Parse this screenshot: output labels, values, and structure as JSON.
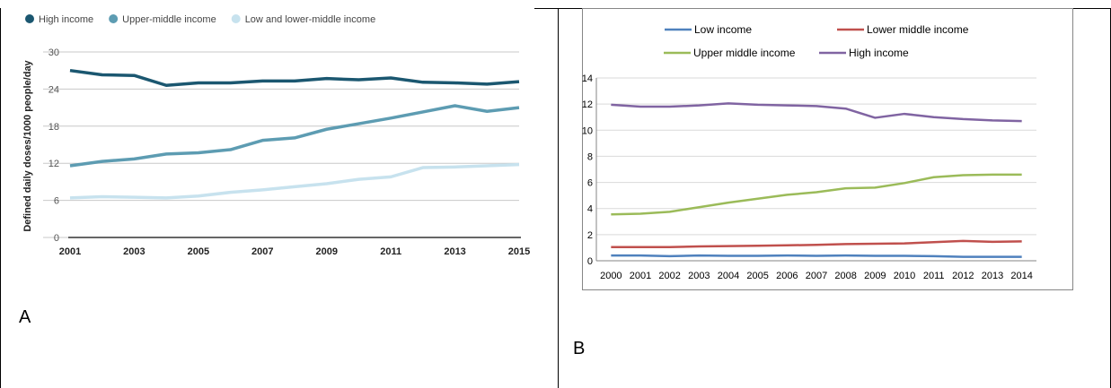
{
  "panels": {
    "a": {
      "letter": "A"
    },
    "b": {
      "letter": "B"
    }
  },
  "chart_data": [
    {
      "type": "line",
      "title": "",
      "xlabel": "",
      "ylabel": "Defined daily doses/1000 people/day",
      "x": [
        2001,
        2002,
        2003,
        2004,
        2005,
        2006,
        2007,
        2008,
        2009,
        2010,
        2011,
        2012,
        2013,
        2014,
        2015
      ],
      "xticks": [
        "2001",
        "2003",
        "2005",
        "2007",
        "2009",
        "2011",
        "2013",
        "2015"
      ],
      "ylim": [
        0,
        30
      ],
      "yticks": [
        "0",
        "6",
        "12",
        "18",
        "24",
        "30"
      ],
      "grid": true,
      "legend_position": "top-left",
      "colors": [
        "#1b5770",
        "#5d9cb2",
        "#c7e2ee"
      ],
      "series": [
        {
          "name": "High income",
          "values": [
            27.0,
            26.3,
            26.2,
            24.6,
            25.0,
            25.0,
            25.3,
            25.3,
            25.7,
            25.5,
            25.8,
            25.1,
            25.0,
            24.8,
            25.2
          ]
        },
        {
          "name": "Upper-middle income",
          "values": [
            11.6,
            12.3,
            12.7,
            13.5,
            13.7,
            14.2,
            15.7,
            16.1,
            17.5,
            18.4,
            19.3,
            20.3,
            21.3,
            20.4,
            21.0
          ]
        },
        {
          "name": "Low and lower-middle income",
          "values": [
            6.4,
            6.6,
            6.5,
            6.4,
            6.7,
            7.3,
            7.7,
            8.2,
            8.7,
            9.4,
            9.8,
            11.3,
            11.4,
            11.6,
            11.8
          ]
        }
      ]
    },
    {
      "type": "line",
      "title": "",
      "xlabel": "",
      "ylabel": "",
      "x": [
        "2000",
        "2001",
        "2002",
        "2003",
        "2004",
        "2005",
        "2006",
        "2007",
        "2008",
        "2009",
        "2010",
        "2011",
        "2012",
        "2013",
        "2014"
      ],
      "ylim": [
        0,
        14
      ],
      "yticks": [
        "0",
        "2",
        "4",
        "6",
        "8",
        "10",
        "12",
        "14"
      ],
      "grid": true,
      "legend_position": "top",
      "colors": [
        "#4f81bd",
        "#c0504d",
        "#9bbb59",
        "#8064a2"
      ],
      "series": [
        {
          "name": "Low income",
          "values": [
            0.4,
            0.4,
            0.35,
            0.4,
            0.38,
            0.38,
            0.4,
            0.38,
            0.4,
            0.38,
            0.38,
            0.35,
            0.3,
            0.3,
            0.3
          ]
        },
        {
          "name": "Lower middle income",
          "values": [
            1.05,
            1.05,
            1.05,
            1.1,
            1.12,
            1.15,
            1.18,
            1.22,
            1.28,
            1.3,
            1.33,
            1.42,
            1.52,
            1.45,
            1.48
          ]
        },
        {
          "name": "Upper middle income",
          "values": [
            3.55,
            3.6,
            3.75,
            4.1,
            4.45,
            4.75,
            5.05,
            5.25,
            5.55,
            5.6,
            5.95,
            6.4,
            6.55,
            6.6,
            6.6
          ]
        },
        {
          "name": "High income",
          "values": [
            11.95,
            11.8,
            11.8,
            11.9,
            12.05,
            11.95,
            11.9,
            11.85,
            11.65,
            10.95,
            11.25,
            11.0,
            10.85,
            10.75,
            10.7
          ]
        }
      ]
    }
  ]
}
